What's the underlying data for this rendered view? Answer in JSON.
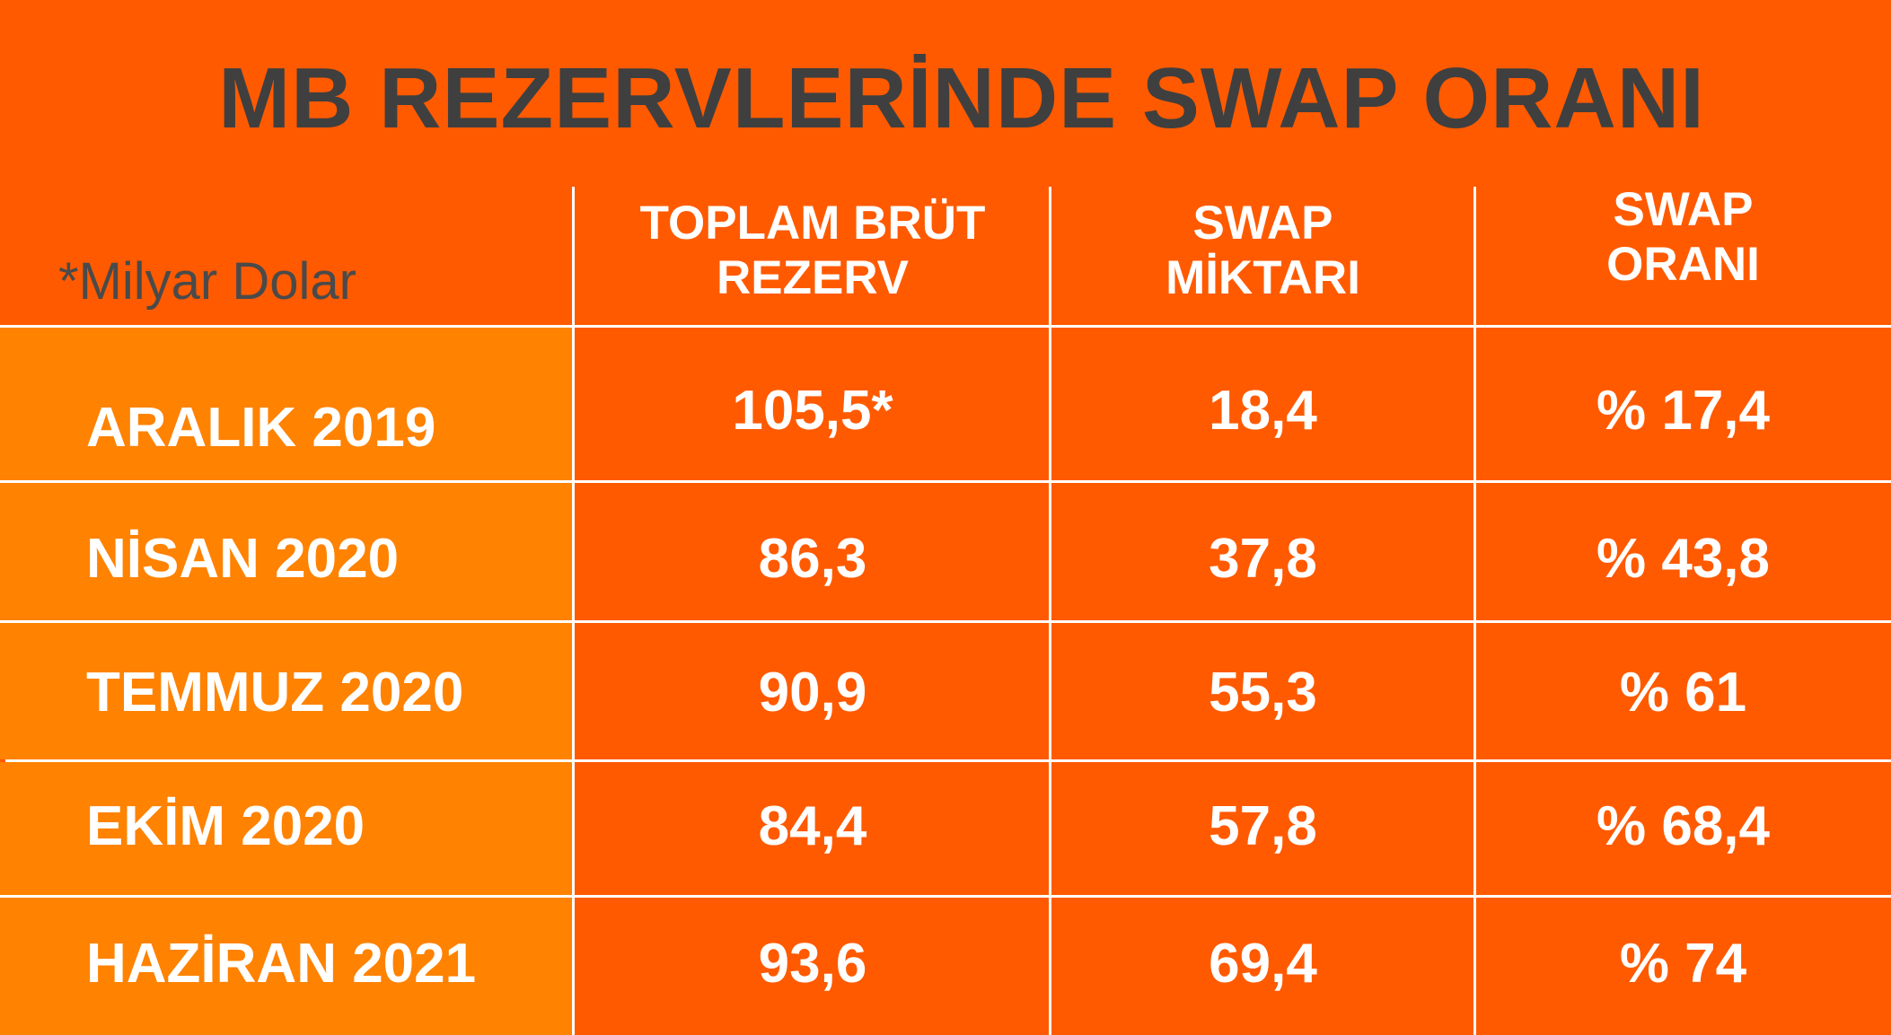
{
  "chart_data": {
    "type": "table",
    "title": "MB REZERVLERİNDE SWAP ORANI",
    "unit_note": "*Milyar Dolar",
    "columns": [
      {
        "lines": [
          "TOPLAM BRÜT",
          "REZERV"
        ]
      },
      {
        "lines": [
          "SWAP",
          "MİKTARI"
        ]
      },
      {
        "lines": [
          "SWAP",
          "ORANI"
        ]
      }
    ],
    "rows": [
      {
        "label": "ARALIK 2019",
        "values": [
          "105,5*",
          "18,4",
          "% 17,4"
        ]
      },
      {
        "label": "NİSAN 2020",
        "values": [
          "86,3",
          "37,8",
          "% 43,8"
        ]
      },
      {
        "label": "TEMMUZ 2020",
        "values": [
          "90,9",
          "55,3",
          "% 61"
        ]
      },
      {
        "label": "EKİM 2020",
        "values": [
          "84,4",
          "57,8",
          "% 68,4"
        ]
      },
      {
        "label": "HAZİRAN 2021",
        "values": [
          "93,6",
          "69,4",
          "% 74"
        ]
      }
    ],
    "numeric": {
      "categories": [
        "ARALIK 2019",
        "NİSAN 2020",
        "TEMMUZ 2020",
        "EKİM 2020",
        "HAZİRAN 2021"
      ],
      "series": [
        {
          "values": [
            105.5,
            86.3,
            90.9,
            84.4,
            93.6
          ]
        },
        {
          "values": [
            18.4,
            37.8,
            55.3,
            57.8,
            69.4
          ]
        },
        {
          "values": [
            17.4,
            43.8,
            61,
            68.4,
            74
          ]
        }
      ]
    }
  },
  "colors": {
    "background": "#ff5a00",
    "label_column": "#ff8200",
    "title_text": "#3f3f3f",
    "note_text": "#4a4a4a",
    "cell_text": "#ffffff",
    "grid": "#ffffff"
  }
}
